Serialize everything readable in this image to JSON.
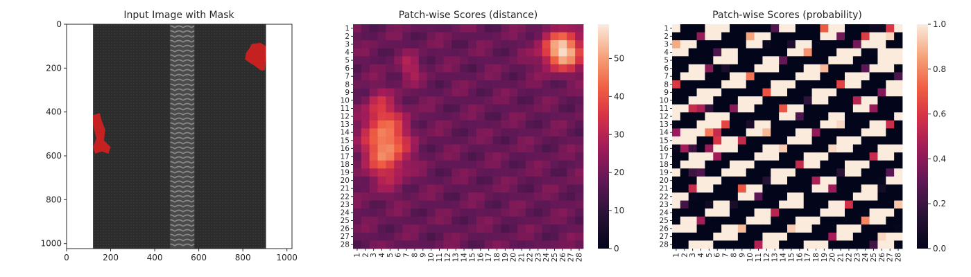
{
  "chart_data": [
    {
      "type": "image",
      "title": "Input Image with Mask",
      "xlim": [
        0,
        1023
      ],
      "ylim": [
        1023,
        0
      ],
      "xticks": [
        0,
        200,
        400,
        600,
        800,
        1000
      ],
      "yticks": [
        0,
        200,
        400,
        600,
        800,
        1000
      ],
      "colors": {
        "zipper": "#2b2b2b",
        "mask": "#e02020",
        "teeth": "#6a6a6a"
      }
    },
    {
      "type": "heatmap",
      "title": "Patch-wise Scores (distance)",
      "rows": 28,
      "cols": 28,
      "row_labels": [
        "1",
        "2",
        "3",
        "4",
        "5",
        "6",
        "7",
        "8",
        "9",
        "10",
        "11",
        "12",
        "13",
        "14",
        "15",
        "16",
        "17",
        "18",
        "19",
        "20",
        "21",
        "22",
        "23",
        "24",
        "25",
        "26",
        "27",
        "28"
      ],
      "col_labels": [
        "1",
        "2",
        "3",
        "4",
        "5",
        "6",
        "7",
        "8",
        "9",
        "10",
        "11",
        "12",
        "13",
        "14",
        "15",
        "16",
        "17",
        "18",
        "19",
        "20",
        "21",
        "22",
        "23",
        "24",
        "25",
        "26",
        "27",
        "28"
      ],
      "vmin": 0,
      "vmax": 59,
      "colorbar_ticks": [
        0,
        10,
        20,
        30,
        40,
        50
      ],
      "base": 19,
      "hotspots": [
        {
          "row": 15.5,
          "col": 4.5,
          "peak": 31,
          "sr": 2.9,
          "sc": 1.8
        },
        {
          "row": 3.8,
          "col": 26,
          "peak": 39,
          "sr": 1.6,
          "sc": 1.7
        },
        {
          "row": 6,
          "col": 7.5,
          "peak": 11,
          "sr": 1.2,
          "sc": 0.9
        },
        {
          "row": 11,
          "col": 3.5,
          "peak": 10,
          "sr": 1.5,
          "sc": 1.0
        }
      ]
    },
    {
      "type": "heatmap",
      "title": "Patch-wise Scores (probability)",
      "rows": 28,
      "cols": 28,
      "row_labels": [
        "1",
        "2",
        "3",
        "4",
        "5",
        "6",
        "7",
        "8",
        "9",
        "10",
        "11",
        "12",
        "13",
        "14",
        "15",
        "16",
        "17",
        "18",
        "19",
        "20",
        "21",
        "22",
        "23",
        "24",
        "25",
        "26",
        "27",
        "28"
      ],
      "col_labels": [
        "1",
        "2",
        "3",
        "4",
        "5",
        "6",
        "7",
        "8",
        "9",
        "10",
        "11",
        "12",
        "13",
        "14",
        "15",
        "16",
        "17",
        "18",
        "19",
        "20",
        "21",
        "22",
        "23",
        "24",
        "25",
        "26",
        "27",
        "28"
      ],
      "vmin": 0.0,
      "vmax": 1.0,
      "colorbar_ticks": [
        "0.0",
        "0.2",
        "0.4",
        "0.6",
        "0.8",
        "1.0"
      ],
      "base": 0.0,
      "hotspots": [
        {
          "row": 15.5,
          "col": 4.5,
          "peak": 1.7,
          "sr": 3.2,
          "sc": 2.0
        },
        {
          "row": 4.0,
          "col": 26,
          "peak": 1.9,
          "sr": 2.0,
          "sc": 2.2
        },
        {
          "row": 6.0,
          "col": 7.5,
          "peak": 0.8,
          "sr": 1.1,
          "sc": 0.8
        },
        {
          "row": 10.5,
          "col": 3.5,
          "peak": 0.5,
          "sr": 1.2,
          "sc": 1.0
        }
      ]
    }
  ]
}
